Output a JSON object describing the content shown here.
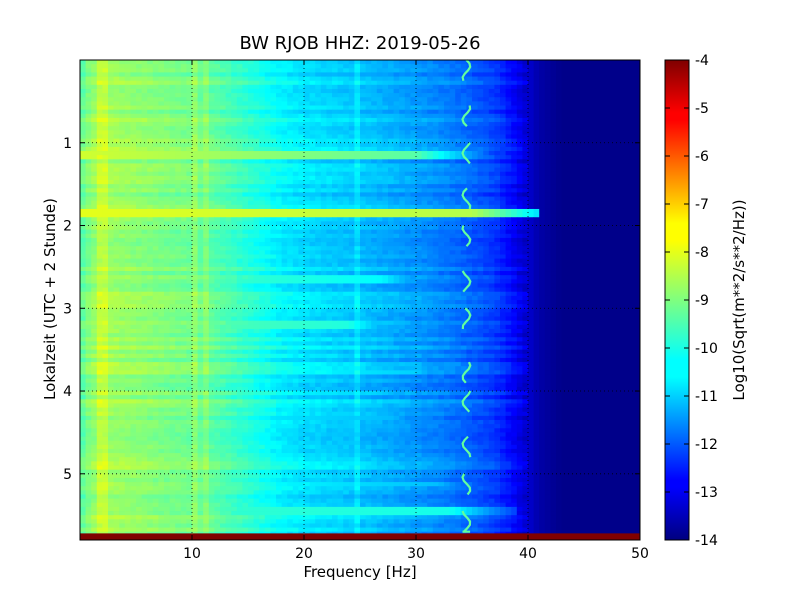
{
  "chart_data": {
    "type": "heatmap",
    "title": "BW RJOB HHZ: 2019-05-26",
    "xlabel": "Frequency [Hz]",
    "ylabel": "Lokalzeit (UTC + 2 Stunde)",
    "xlim": [
      0,
      50
    ],
    "ylim": [
      5.8,
      0
    ],
    "x_ticks": [
      "10",
      "20",
      "30",
      "40",
      "50"
    ],
    "y_ticks": [
      "1",
      "2",
      "3",
      "4",
      "5"
    ],
    "x_tick_values": [
      10,
      20,
      30,
      40,
      50
    ],
    "y_tick_values": [
      1,
      2,
      3,
      4,
      5
    ],
    "grid": true,
    "colormap": "jet",
    "colorbar": {
      "label": "Log10(Sqrt(m**2/s**2/Hz))",
      "range": [
        -14,
        -4
      ],
      "ticks": [
        "-4",
        "-5",
        "-6",
        "-7",
        "-8",
        "-9",
        "-10",
        "-11",
        "-12",
        "-13",
        "-14"
      ],
      "tick_values": [
        -4,
        -5,
        -6,
        -7,
        -8,
        -9,
        -10,
        -11,
        -12,
        -13,
        -14
      ]
    },
    "spectral_profile": {
      "frequency_hz": [
        0,
        1,
        2,
        5,
        8,
        10,
        12,
        15,
        18,
        20,
        25,
        30,
        33,
        35,
        37,
        39,
        41,
        43,
        50
      ],
      "log10_amplitude": [
        -9.4,
        -8.8,
        -8.6,
        -8.8,
        -9.0,
        -9.1,
        -9.3,
        -9.8,
        -10.3,
        -10.5,
        -10.8,
        -11.2,
        -11.5,
        -11.8,
        -12.1,
        -12.8,
        -13.6,
        -13.9,
        -13.9
      ]
    },
    "persistent_lines_hz": [
      2.0,
      10.2,
      11.1,
      24.6
    ],
    "moving_line": {
      "center_hz": 34.5,
      "hours": [
        0.0,
        0.55,
        1.0,
        1.55,
        2.0,
        2.55,
        3.0,
        3.65,
        4.0,
        4.55,
        5.0,
        5.45,
        5.75
      ]
    },
    "bright_bands": [
      {
        "hour": 1.16,
        "log10_amplitude": -8.2,
        "max_hz": 36
      },
      {
        "hour": 1.85,
        "log10_amplitude": -8.0,
        "max_hz": 41
      },
      {
        "hour": 2.65,
        "log10_amplitude": -9.2,
        "max_hz": 33
      },
      {
        "hour": 3.2,
        "log10_amplitude": -9.0,
        "max_hz": 30
      },
      {
        "hour": 3.78,
        "log10_amplitude": -9.5,
        "max_hz": 36
      },
      {
        "hour": 4.33,
        "log10_amplitude": -9.8,
        "max_hz": 34
      },
      {
        "hour": 5.12,
        "log10_amplitude": -9.6,
        "max_hz": 38
      },
      {
        "hour": 5.45,
        "log10_amplitude": -9.6,
        "max_hz": 39
      }
    ],
    "saturated_last_row": {
      "hour_start": 5.72,
      "log10_amplitude": -4.0
    }
  }
}
